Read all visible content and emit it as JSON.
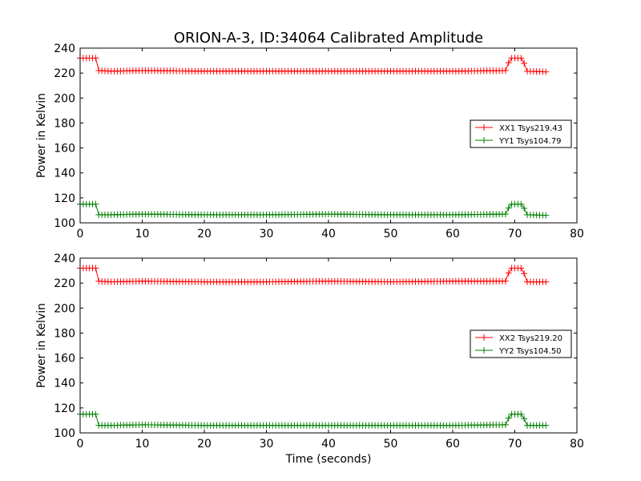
{
  "chart_data": [
    {
      "type": "line",
      "title": "ORION-A-3, ID:34064 Calibrated Amplitude",
      "xlabel": "",
      "ylabel": "Power in Kelvin",
      "xlim": [
        0,
        80
      ],
      "ylim": [
        100,
        240
      ],
      "xticks": [
        "0",
        "10",
        "20",
        "30",
        "40",
        "50",
        "60",
        "70",
        "80"
      ],
      "yticks": [
        "100",
        "120",
        "140",
        "160",
        "180",
        "200",
        "220",
        "240"
      ],
      "grid": false,
      "legend_position": "center-right",
      "series": [
        {
          "name": "XX1 Tsys219.43",
          "color": "#ff0000",
          "marker": "+",
          "x": [
            0,
            2.5,
            3,
            5,
            10,
            20,
            30,
            40,
            50,
            60,
            68.5,
            69.3,
            71.3,
            71.8,
            75
          ],
          "y": [
            232,
            232,
            222,
            221.5,
            222,
            221.5,
            221.5,
            221.5,
            221.5,
            221.5,
            222,
            232,
            232,
            221.5,
            221
          ]
        },
        {
          "name": "YY1 Tsys104.79",
          "color": "#008000",
          "marker": "+",
          "x": [
            0,
            2.5,
            3,
            5,
            10,
            20,
            30,
            40,
            50,
            60,
            68.5,
            69.3,
            71.3,
            71.8,
            75
          ],
          "y": [
            115,
            115,
            106.5,
            106.5,
            107,
            106.5,
            106.5,
            107,
            106.5,
            106.5,
            107,
            115,
            115,
            106.5,
            106
          ]
        }
      ]
    },
    {
      "type": "line",
      "title": "",
      "xlabel": "Time (seconds)",
      "ylabel": "Power in Kelvin",
      "xlim": [
        0,
        80
      ],
      "ylim": [
        100,
        240
      ],
      "xticks": [
        "0",
        "10",
        "20",
        "30",
        "40",
        "50",
        "60",
        "70",
        "80"
      ],
      "yticks": [
        "100",
        "120",
        "140",
        "160",
        "180",
        "200",
        "220",
        "240"
      ],
      "grid": false,
      "legend_position": "center-right",
      "series": [
        {
          "name": "XX2 Tsys219.20",
          "color": "#ff0000",
          "marker": "+",
          "x": [
            0,
            2.5,
            3,
            5,
            10,
            20,
            30,
            40,
            50,
            60,
            68.5,
            69.3,
            71.3,
            71.8,
            75
          ],
          "y": [
            232,
            232,
            221.5,
            221,
            221.5,
            221,
            221,
            221.5,
            221,
            221.5,
            221.5,
            232,
            232,
            221,
            221
          ]
        },
        {
          "name": "YY2 Tsys104.50",
          "color": "#008000",
          "marker": "+",
          "x": [
            0,
            2.5,
            3,
            5,
            10,
            20,
            30,
            40,
            50,
            60,
            68.5,
            69.3,
            71.3,
            71.8,
            75
          ],
          "y": [
            115,
            115,
            106,
            106,
            106.5,
            106,
            106,
            106,
            106,
            106,
            106.5,
            115,
            115,
            106,
            106
          ]
        }
      ]
    }
  ]
}
